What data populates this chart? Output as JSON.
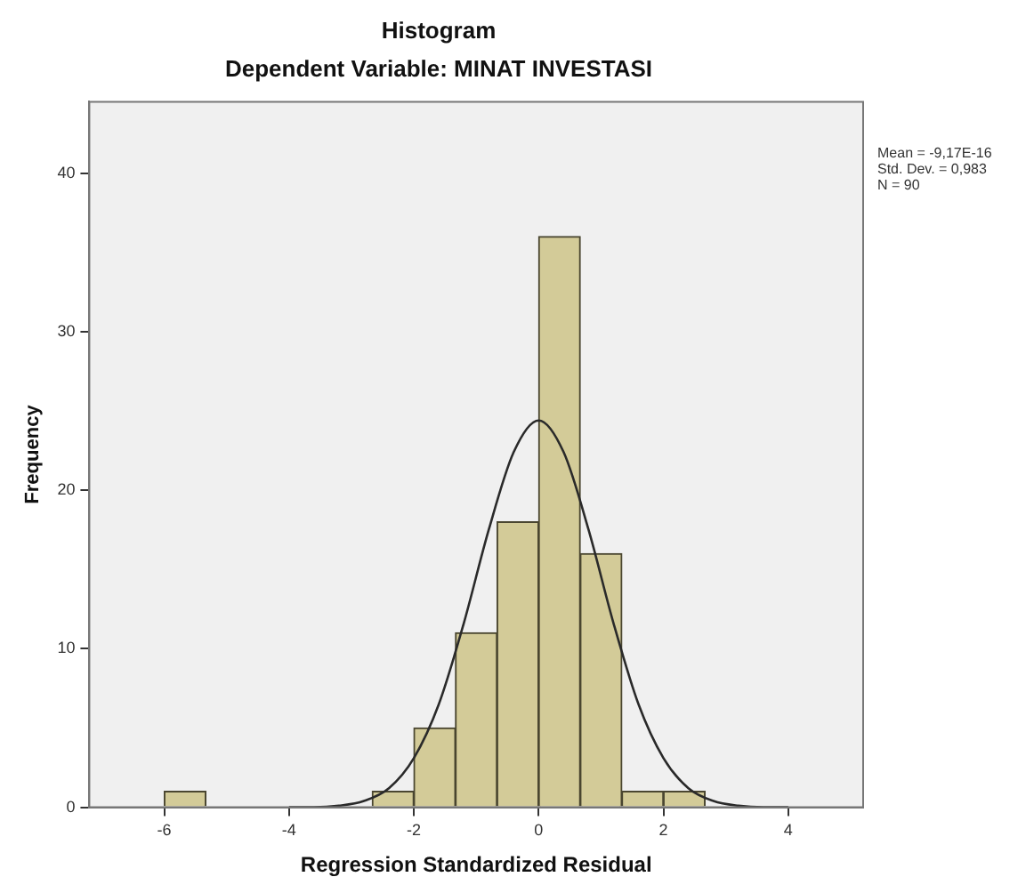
{
  "chart_data": {
    "type": "histogram",
    "title": "Histogram",
    "subtitle": "Dependent Variable: MINAT INVESTASI",
    "xlabel": "Regression Standardized Residual",
    "ylabel": "Frequency",
    "bins": [
      -6,
      -5.333,
      -4.667,
      -4,
      -3.333,
      -2.667,
      -2,
      -1.333,
      -0.667,
      0,
      0.667,
      1.333,
      2,
      2.667
    ],
    "values": [
      1,
      0,
      0,
      0,
      0,
      1,
      5,
      11,
      18,
      36,
      16,
      1,
      1
    ],
    "color": "#d3cb98",
    "series": [
      {
        "type": "line",
        "color": "#2a2a2a",
        "x": [
          -4,
          -3.6,
          -3.2,
          -2.8,
          -2.4,
          -2,
          -1.6,
          -1.2,
          -0.8,
          -0.4,
          0,
          0.4,
          0.8,
          1.2,
          1.6,
          2,
          2.4,
          2.8,
          3.2,
          3.6,
          4
        ],
        "values": [
          0,
          0,
          0.1,
          0.4,
          1.2,
          3.1,
          6.5,
          11.6,
          17.5,
          22.4,
          24.4,
          22.4,
          17.5,
          11.6,
          6.5,
          3.1,
          1.2,
          0.4,
          0.1,
          0,
          0
        ]
      }
    ],
    "xlim": [
      -7.2,
      5.2
    ],
    "xticks": [
      -6,
      -4,
      -2,
      0,
      2,
      4
    ],
    "ylim": [
      0,
      44.5
    ],
    "yticks": [
      0,
      10,
      20,
      30,
      40
    ],
    "grid": false,
    "legend": false,
    "marker": "none",
    "annotations": [
      "Mean = -9,17E-16",
      "Std. Dev. = 0,983",
      "N = 90"
    ]
  }
}
